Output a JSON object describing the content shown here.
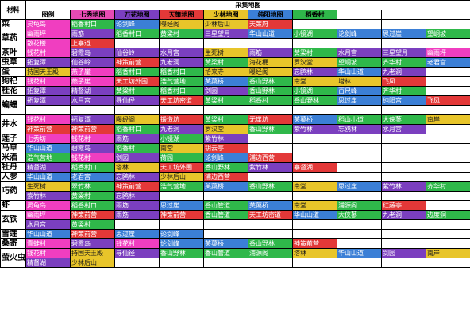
{
  "header": {
    "material_label": "材料",
    "title": "采集地图",
    "legend": [
      {
        "label": "图例",
        "color": "#ffffff"
      },
      {
        "label": "七秀地图",
        "color": "#e64ab3"
      },
      {
        "label": "万花地图",
        "color": "#7b3fbf"
      },
      {
        "label": "天策地图",
        "color": "#e33838"
      },
      {
        "label": "少林地图",
        "color": "#e8c52a"
      },
      {
        "label": "纯阳地图",
        "color": "#3b7fd6"
      },
      {
        "label": "稻香村",
        "color": "#2fb84a"
      }
    ]
  },
  "colors": {
    "pink": "#f03ec0",
    "purple": "#7b3fbf",
    "red": "#e33838",
    "yellow": "#e8c52a",
    "blue": "#3b7fd6",
    "green": "#2fb84a",
    "white": "#ffffff",
    "text_dark": "#1a1a1a",
    "text_light": "#ffffff"
  },
  "rows": [
    {
      "name": "菜",
      "lines": [
        [
          [
            "灵龟岛",
            "pink"
          ],
          [
            "稻香村口",
            "green"
          ],
          [
            "论剑峰",
            "blue"
          ],
          [
            "曝经阁",
            "yellow"
          ],
          [
            "少林后山",
            "yellow"
          ],
          [
            "天策府",
            "red"
          ],
          [
            "",
            ""
          ],
          [
            "",
            ""
          ],
          [
            "",
            ""
          ],
          [
            "",
            ""
          ]
        ]
      ]
    },
    {
      "name": "草药",
      "lines": [
        [
          [
            "幽雨坪",
            "pink"
          ],
          [
            "雨筋",
            "purple"
          ],
          [
            "稻香村口",
            "green"
          ],
          [
            "黄梁村",
            "green"
          ],
          [
            "三星望月",
            "purple"
          ],
          [
            "华山山道",
            "blue"
          ],
          [
            "小镜湖",
            "green"
          ],
          [
            "论剑峰",
            "blue"
          ],
          [
            "思过崖",
            "blue"
          ],
          [
            "望峒坡",
            "green"
          ]
        ],
        [
          [
            "散花楼",
            "pink"
          ],
          [
            "上寨道",
            "red"
          ],
          [
            "",
            ""
          ],
          [
            "",
            ""
          ],
          [
            "",
            ""
          ],
          [
            "",
            ""
          ],
          [
            "",
            ""
          ],
          [
            "",
            ""
          ],
          [
            "",
            ""
          ],
          [
            "",
            ""
          ]
        ]
      ]
    },
    {
      "name": "茶叶",
      "lines": [
        [
          [
            "钱花村",
            "pink"
          ],
          [
            "碧霞岛",
            "purple"
          ],
          [
            "仙谷岭",
            "purple"
          ],
          [
            "水月宫",
            "purple"
          ],
          [
            "生死树",
            "yellow"
          ],
          [
            "雨筋",
            "purple"
          ],
          [
            "黄梁村",
            "green"
          ],
          [
            "水月宫",
            "purple"
          ],
          [
            "三星望月",
            "purple"
          ],
          [
            "幽雨坪",
            "pink"
          ]
        ]
      ]
    },
    {
      "name": "虫草",
      "lines": [
        [
          [
            "拓复潭",
            "purple"
          ],
          [
            "仙谷岭",
            "purple"
          ],
          [
            "神策前营",
            "red"
          ],
          [
            "九老洞",
            "purple"
          ],
          [
            "黄梁村",
            "green"
          ],
          [
            "海花梗",
            "yellow"
          ],
          [
            "罗汉堂",
            "yellow"
          ],
          [
            "望峒坡",
            "green"
          ],
          [
            "齐华村",
            "green"
          ],
          [
            "老君宫",
            "blue"
          ]
        ]
      ]
    },
    {
      "name": "蛋",
      "lines": [
        [
          [
            "持国天王殿",
            "yellow"
          ],
          [
            "燕子崖",
            "pink"
          ],
          [
            "稻香村口",
            "green"
          ],
          [
            "稻香村口",
            "green"
          ],
          [
            "拾来寺",
            "yellow"
          ],
          [
            "曝经阁",
            "yellow"
          ],
          [
            "忘鸥林",
            "purple"
          ],
          [
            "华山山道",
            "blue"
          ],
          [
            "九老洞",
            "purple"
          ],
          [
            "",
            ""
          ]
        ]
      ]
    },
    {
      "name": "狗杞",
      "lines": [
        [
          [
            "钱花村",
            "pink"
          ],
          [
            "燕子崖",
            "pink"
          ],
          [
            "天工坊外围",
            "red"
          ],
          [
            "浩气营地",
            "green"
          ],
          [
            "芙蕖桥",
            "blue"
          ],
          [
            "香山野林",
            "green"
          ],
          [
            "南堂",
            "yellow"
          ],
          [
            "塔林",
            "yellow"
          ],
          [
            "飞凤",
            "red"
          ],
          [
            "",
            ""
          ]
        ]
      ]
    },
    {
      "name": "桂花",
      "lines": [
        [
          [
            "拓复潭",
            "purple"
          ],
          [
            "精督湖",
            "purple"
          ],
          [
            "黄梁村",
            "green"
          ],
          [
            "稻香村口",
            "green"
          ],
          [
            "剑园",
            "purple"
          ],
          [
            "香山野林",
            "green"
          ],
          [
            "小镜湖",
            "green"
          ],
          [
            "百尺峰",
            "blue"
          ],
          [
            "齐华村",
            "green"
          ],
          [
            "",
            ""
          ]
        ]
      ]
    },
    {
      "name": "蝙蝠",
      "lines": [
        [
          [
            "拓复潭",
            "purple"
          ],
          [
            "水月宫",
            "purple"
          ],
          [
            "寻仙径",
            "purple"
          ],
          [
            "天工坊密道",
            "red"
          ],
          [
            "黄梁村",
            "green"
          ],
          [
            "稻香村",
            "green"
          ],
          [
            "香山野林",
            "green"
          ],
          [
            "思过崖",
            "blue"
          ],
          [
            "纯阳宫",
            "blue"
          ],
          [
            "飞凤",
            "red"
          ]
        ],
        [
          [
            "",
            ""
          ],
          [
            "",
            ""
          ],
          [
            "",
            ""
          ],
          [
            "",
            ""
          ],
          [
            "",
            ""
          ],
          [
            "",
            ""
          ],
          [
            "",
            ""
          ],
          [
            "",
            ""
          ],
          [
            "",
            ""
          ],
          [
            "",
            ""
          ]
        ]
      ]
    },
    {
      "name": "井水",
      "lines": [
        [
          [
            "钱花村",
            "pink"
          ],
          [
            "拓复潭",
            "purple"
          ],
          [
            "曝经阁",
            "yellow"
          ],
          [
            "锻造坊",
            "red"
          ],
          [
            "黄梁村",
            "green"
          ],
          [
            "无崖坊",
            "red"
          ],
          [
            "芙蕖桥",
            "blue"
          ],
          [
            "稻山小道",
            "green"
          ],
          [
            "大侠蓼",
            "green"
          ],
          [
            "南岸",
            "yellow"
          ]
        ],
        [
          [
            "神策前营",
            "red"
          ],
          [
            "神策前营",
            "red"
          ],
          [
            "稻香村口",
            "green"
          ],
          [
            "九老洞",
            "purple"
          ],
          [
            "罗汉堂",
            "yellow"
          ],
          [
            "香山野林",
            "green"
          ],
          [
            "紫竹林",
            "purple"
          ],
          [
            "忘鸥林",
            "purple"
          ],
          [
            "水月宫",
            "purple"
          ],
          [
            "",
            ""
          ]
        ]
      ]
    },
    {
      "name": "莲子",
      "lines": [
        [
          [
            "七秀坊",
            "pink"
          ],
          [
            "钱花村",
            "pink"
          ],
          [
            "雨筋",
            "purple"
          ],
          [
            "小镜湖",
            "green"
          ],
          [
            "紫竹林",
            "purple"
          ],
          [
            "",
            ""
          ],
          [
            "",
            ""
          ],
          [
            "",
            ""
          ],
          [
            "",
            ""
          ],
          [
            "",
            ""
          ]
        ]
      ]
    },
    {
      "name": "马草",
      "lines": [
        [
          [
            "华山山道",
            "blue"
          ],
          [
            "碧霞岛",
            "purple"
          ],
          [
            "稻香村",
            "green"
          ],
          [
            "南堂",
            "yellow"
          ],
          [
            "钥云亭",
            "red"
          ],
          [
            "",
            ""
          ],
          [
            "",
            ""
          ],
          [
            "",
            ""
          ],
          [
            "",
            ""
          ],
          [
            "",
            ""
          ]
        ]
      ]
    },
    {
      "name": "米酒",
      "lines": [
        [
          [
            "浩气营地",
            "green"
          ],
          [
            "钱花村",
            "pink"
          ],
          [
            "剑园",
            "purple"
          ],
          [
            "荷园",
            "green"
          ],
          [
            "论剑峰",
            "blue"
          ],
          [
            "浦边西营",
            "red"
          ],
          [
            "",
            ""
          ],
          [
            "",
            ""
          ],
          [
            "",
            ""
          ],
          [
            "",
            ""
          ]
        ]
      ]
    },
    {
      "name": "牡丹",
      "lines": [
        [
          [
            "精督湖",
            "purple"
          ],
          [
            "稻香村口",
            "green"
          ],
          [
            "塔林",
            "yellow"
          ],
          [
            "天工坊外围",
            "red"
          ],
          [
            "香山野林",
            "green"
          ],
          [
            "紫竹林",
            "purple"
          ],
          [
            "寨督湖",
            "red"
          ],
          [
            "",
            ""
          ],
          [
            "",
            ""
          ],
          [
            "",
            ""
          ]
        ]
      ]
    },
    {
      "name": "人参",
      "lines": [
        [
          [
            "华山山道",
            "blue"
          ],
          [
            "老君宫",
            "blue"
          ],
          [
            "忘鸥林",
            "purple"
          ],
          [
            "少林后山",
            "yellow"
          ],
          [
            "浦边西营",
            "red"
          ],
          [
            "",
            ""
          ],
          [
            "",
            ""
          ],
          [
            "",
            ""
          ],
          [
            "",
            ""
          ],
          [
            "",
            ""
          ]
        ]
      ]
    },
    {
      "name": "巧药",
      "lines": [
        [
          [
            "生死树",
            "yellow"
          ],
          [
            "翠竹林",
            "green"
          ],
          [
            "神策前营",
            "red"
          ],
          [
            "浩气营地",
            "green"
          ],
          [
            "芙蕖桥",
            "blue"
          ],
          [
            "香山野林",
            "green"
          ],
          [
            "南堂",
            "yellow"
          ],
          [
            "思过崖",
            "blue"
          ],
          [
            "紫竹林",
            "purple"
          ],
          [
            "齐华村",
            "green"
          ]
        ],
        [
          [
            "紫竹林",
            "purple"
          ],
          [
            "黄梁村",
            "green"
          ],
          [
            "忘鸥林",
            "purple"
          ],
          [
            "",
            ""
          ],
          [
            "",
            ""
          ],
          [
            "",
            ""
          ],
          [
            "",
            ""
          ],
          [
            "",
            ""
          ],
          [
            "",
            ""
          ],
          [
            "",
            ""
          ]
        ]
      ]
    },
    {
      "name": "虾",
      "lines": [
        [
          [
            "灵龟岛",
            "pink"
          ],
          [
            "稻香村口",
            "green"
          ],
          [
            "雨筋",
            "purple"
          ],
          [
            "思过崖",
            "blue"
          ],
          [
            "香山管道",
            "green"
          ],
          [
            "芙蕖桥",
            "blue"
          ],
          [
            "南堂",
            "yellow"
          ],
          [
            "浦源阁",
            "green"
          ],
          [
            "红藤亭",
            "red"
          ],
          [
            "",
            ""
          ]
        ]
      ]
    },
    {
      "name": "玄铁",
      "lines": [
        [
          [
            "幽雨坪",
            "pink"
          ],
          [
            "神策前营",
            "red"
          ],
          [
            "雨筋",
            "purple"
          ],
          [
            "神策前营",
            "red"
          ],
          [
            "香山管道",
            "green"
          ],
          [
            "天工坊密道",
            "red"
          ],
          [
            "华山山道",
            "blue"
          ],
          [
            "大侠蓼",
            "green"
          ],
          [
            "九老洞",
            "purple"
          ],
          [
            "边度洞",
            "green"
          ]
        ],
        [
          [
            "水月宫",
            "purple"
          ],
          [
            "黄梁村",
            "green"
          ],
          [
            "",
            ""
          ],
          [
            "",
            ""
          ],
          [
            "",
            ""
          ],
          [
            "",
            ""
          ],
          [
            "",
            ""
          ],
          [
            "",
            ""
          ],
          [
            "",
            ""
          ],
          [
            "",
            ""
          ]
        ]
      ]
    },
    {
      "name": "雪莲",
      "lines": [
        [
          [
            "华山山道",
            "blue"
          ],
          [
            "神策前营",
            "red"
          ],
          [
            "思过崖",
            "blue"
          ],
          [
            "论剑峰",
            "blue"
          ],
          [
            "",
            ""
          ],
          [
            "",
            ""
          ],
          [
            "",
            ""
          ],
          [
            "",
            ""
          ],
          [
            "",
            ""
          ],
          [
            "",
            ""
          ]
        ]
      ]
    },
    {
      "name": "桑寄",
      "lines": [
        [
          [
            "青蛙村",
            "pink"
          ],
          [
            "碧霞岛",
            "purple"
          ],
          [
            "钱花村",
            "pink"
          ],
          [
            "论剑峰",
            "blue"
          ],
          [
            "芙蕖桥",
            "blue"
          ],
          [
            "香山野林",
            "green"
          ],
          [
            "神策前营",
            "red"
          ],
          [
            "",
            ""
          ],
          [
            "",
            ""
          ],
          [
            "",
            ""
          ]
        ]
      ]
    },
    {
      "name": "萤火虫",
      "lines": [
        [
          [
            "钱花村",
            "pink"
          ],
          [
            "持国天王殿",
            "yellow"
          ],
          [
            "寻仙径",
            "purple"
          ],
          [
            "香山野林",
            "green"
          ],
          [
            "香山管道",
            "green"
          ],
          [
            "浦源阁",
            "green"
          ],
          [
            "塔林",
            "yellow"
          ],
          [
            "华山山道",
            "blue"
          ],
          [
            "剑园",
            "purple"
          ],
          [
            "南岸",
            "yellow"
          ]
        ],
        [
          [
            "精督湖",
            "purple"
          ],
          [
            "少林后山",
            "yellow"
          ],
          [
            "",
            ""
          ],
          [
            "",
            ""
          ],
          [
            "",
            ""
          ],
          [
            "",
            ""
          ],
          [
            "",
            ""
          ],
          [
            "",
            ""
          ],
          [
            "",
            ""
          ],
          [
            "",
            ""
          ]
        ]
      ]
    }
  ]
}
